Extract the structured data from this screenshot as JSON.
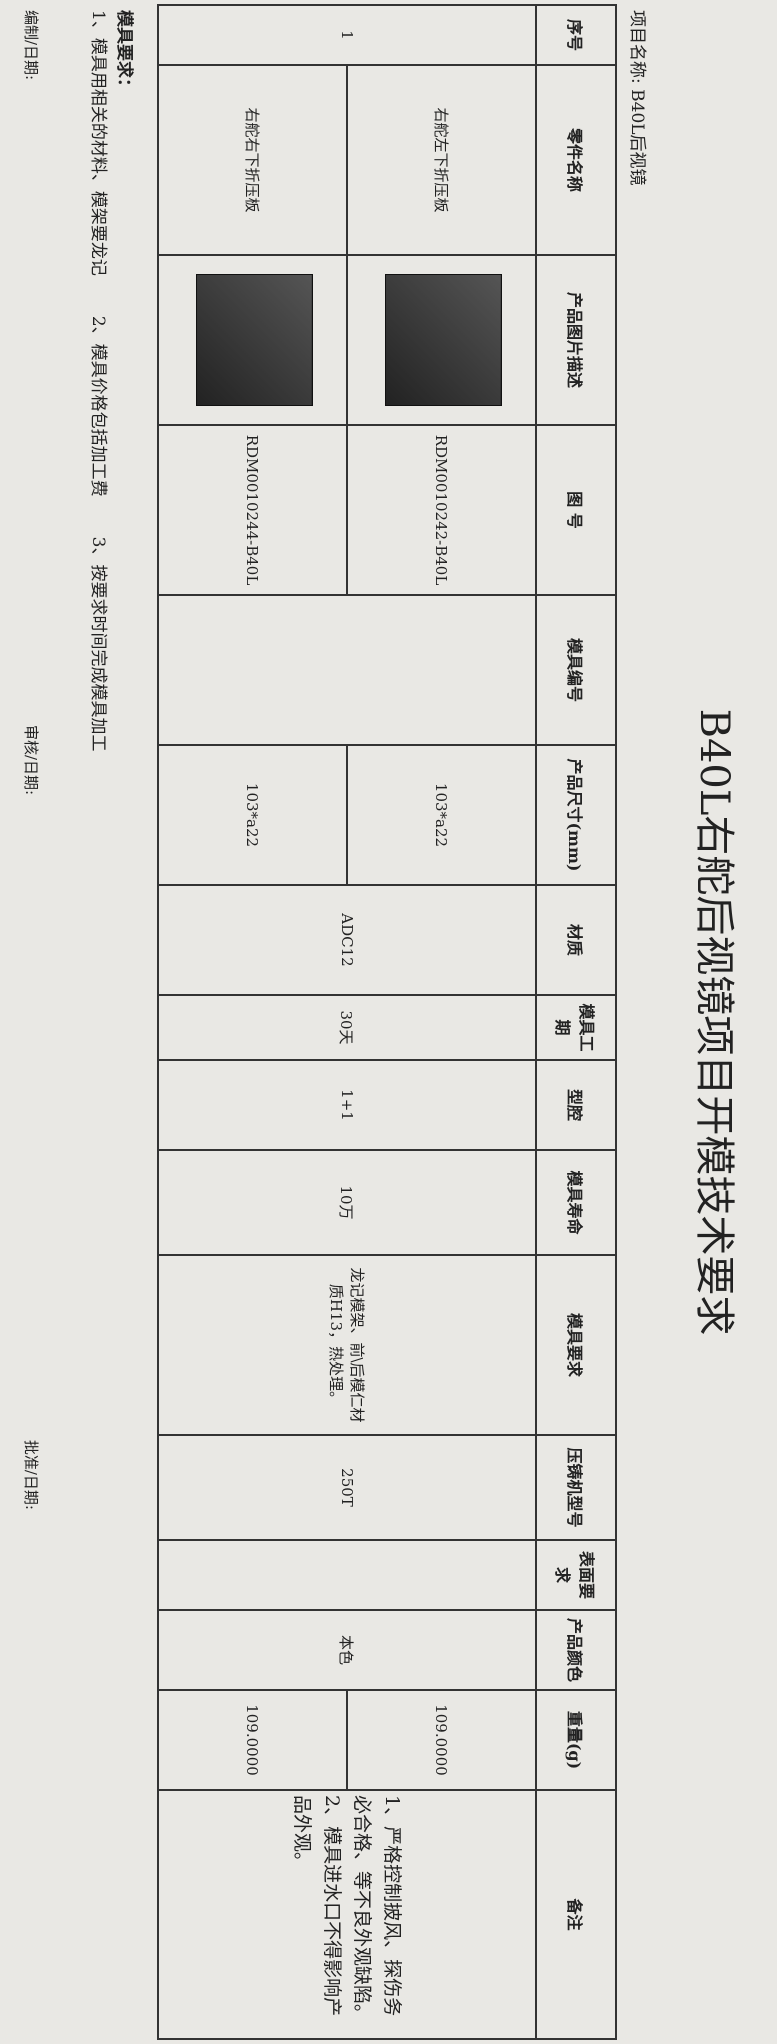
{
  "title": "B40L右舵后视镜项目开模技术要求",
  "project_name": "项目名称: B40L后视镜",
  "table": {
    "headers": [
      "序号",
      "零件名称",
      "产品图片描述",
      "图 号",
      "模具编号",
      "产品尺寸(mm)",
      "材质",
      "模具工期",
      "型腔",
      "模具寿命",
      "模具要求",
      "压铸机型号",
      "表面要求",
      "产品颜色",
      "重量(g)",
      "备注"
    ],
    "rows": [
      {
        "part_name": "右舵左下折压板",
        "drawing_no": "RDM0010242-B40L",
        "size": "103*a22",
        "weight": "109.0000"
      },
      {
        "part_name": "右舵右下折压板",
        "drawing_no": "RDM0010244-B40L",
        "size": "103*a22",
        "weight": "109.0000"
      }
    ],
    "shared": {
      "seq": "1",
      "material": "ADC12",
      "lead_time": "30天",
      "cavity": "1+1",
      "life": "10万",
      "requirement": "龙记模架、前\\后模仁材质H13，热处理。",
      "machine": "250T",
      "color": "本色",
      "remarks": [
        "1、严格控制披风、探伤务必合格、等不良外观缺陷。",
        "2、模具进水口不得影响产品外观。"
      ]
    }
  },
  "requirements": {
    "title": "模具要求：",
    "items": [
      "1、模具用相关的材料、模架要龙记",
      "2、模具价格包括加工费",
      "3、按要求时间完成模具加工"
    ]
  },
  "signatures": [
    "编制/日期:",
    "审核/日期:",
    "批准/日期:"
  ]
}
